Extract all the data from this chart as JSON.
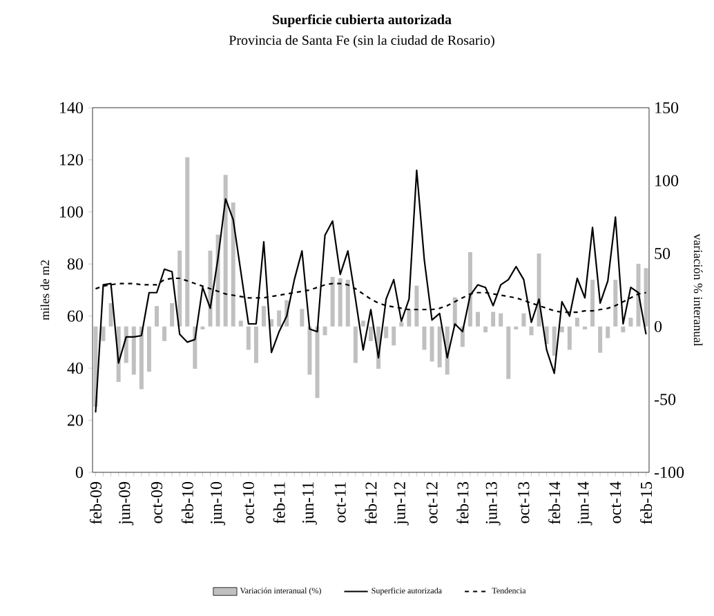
{
  "chart_data": {
    "type": "bar",
    "title": "Superficie cubierta autorizada",
    "subtitle": "Provincia de Santa Fe (sin la ciudad de Rosario)",
    "ylabel": "miles de m2",
    "y2label": "variación % interanual",
    "categories": [
      "feb-09",
      null,
      null,
      null,
      "jun-09",
      null,
      null,
      null,
      "oct-09",
      null,
      null,
      null,
      "feb-10",
      null,
      null,
      null,
      "jun-10",
      null,
      null,
      null,
      "oct-10",
      null,
      null,
      null,
      "feb-11",
      null,
      null,
      null,
      "jun-11",
      null,
      null,
      null,
      "oct-11",
      null,
      null,
      null,
      "feb-12",
      null,
      null,
      null,
      "jun-12",
      null,
      null,
      null,
      "oct-12",
      null,
      null,
      null,
      "feb-13",
      null,
      null,
      null,
      "jun-13",
      null,
      null,
      null,
      "oct-13",
      null,
      null,
      null,
      "feb-14",
      null,
      null,
      null,
      "jun-14",
      null,
      null,
      null,
      "oct-14",
      null,
      null,
      null,
      "feb-15"
    ],
    "series": [
      {
        "name": "Variación interanual (%)",
        "axis": "y2",
        "color": "#c0c0c0",
        "values": [
          -55,
          -10,
          16,
          -38,
          -25,
          -33,
          -43,
          -31,
          14,
          -10,
          16,
          52,
          116,
          -29,
          -2,
          52,
          63,
          104,
          85,
          4,
          -16,
          -25,
          14,
          5,
          11,
          18,
          null,
          12,
          -33,
          -49,
          -6,
          34,
          33,
          32,
          -25,
          4,
          -10,
          -29,
          -8,
          -13,
          3,
          12,
          28,
          -16,
          -24,
          -28,
          -33,
          20,
          -14,
          51,
          10,
          -4,
          10,
          9,
          -36,
          -2,
          9,
          -6,
          50,
          -12,
          -20,
          -4,
          -16,
          6,
          -2,
          32,
          -18,
          -8,
          32,
          -4,
          6,
          43,
          40
        ]
      },
      {
        "name": "Superficie autorizada",
        "type": "line",
        "color": "#000000",
        "values": [
          23,
          72,
          72.5,
          42,
          52,
          52,
          52.5,
          69,
          69,
          78,
          77,
          53,
          50,
          51,
          71,
          63,
          82,
          105,
          97,
          77,
          57,
          57,
          88.5,
          46,
          54,
          60,
          74,
          85,
          55,
          54,
          91,
          96.5,
          76,
          85,
          66.5,
          47,
          62.5,
          44,
          66.5,
          74,
          58,
          66.5,
          116,
          81.5,
          58.5,
          61,
          44,
          57,
          54,
          68,
          72,
          71,
          64,
          72,
          74,
          79,
          74,
          57.6,
          66.5,
          47,
          38,
          65.5,
          60,
          74.5,
          67,
          94,
          65,
          73.5,
          98,
          57,
          71,
          69,
          53
        ]
      },
      {
        "name": "Tendencia",
        "type": "line",
        "line_style": "dashed",
        "color": "#000000",
        "values": [
          70.5,
          71.5,
          72,
          72.5,
          72.5,
          72.5,
          72,
          72,
          72,
          74,
          74.5,
          74.5,
          73.5,
          72.5,
          71.5,
          70.5,
          69.5,
          68.5,
          68,
          67.5,
          67,
          67,
          67,
          67.5,
          68,
          68.5,
          69,
          69.5,
          70,
          71,
          72,
          72.5,
          72.5,
          72,
          70.5,
          68.5,
          66.5,
          65,
          64,
          63.5,
          63,
          62.5,
          62.5,
          62.5,
          62.5,
          63,
          64,
          65.5,
          67,
          68.5,
          69,
          69,
          68.5,
          68,
          67.5,
          67,
          66,
          65,
          64,
          63,
          62,
          61.5,
          61.5,
          61.5,
          62,
          62,
          62.5,
          63,
          64,
          65.5,
          67,
          68.5,
          69
        ]
      }
    ],
    "ylim": [
      0,
      140
    ],
    "yticks": [
      0,
      20,
      40,
      60,
      80,
      100,
      120,
      140
    ],
    "y2lim": [
      -100,
      150
    ],
    "y2ticks": [
      -100,
      -50,
      0,
      50,
      100,
      150
    ],
    "legend": "bottom",
    "marker": "none"
  }
}
